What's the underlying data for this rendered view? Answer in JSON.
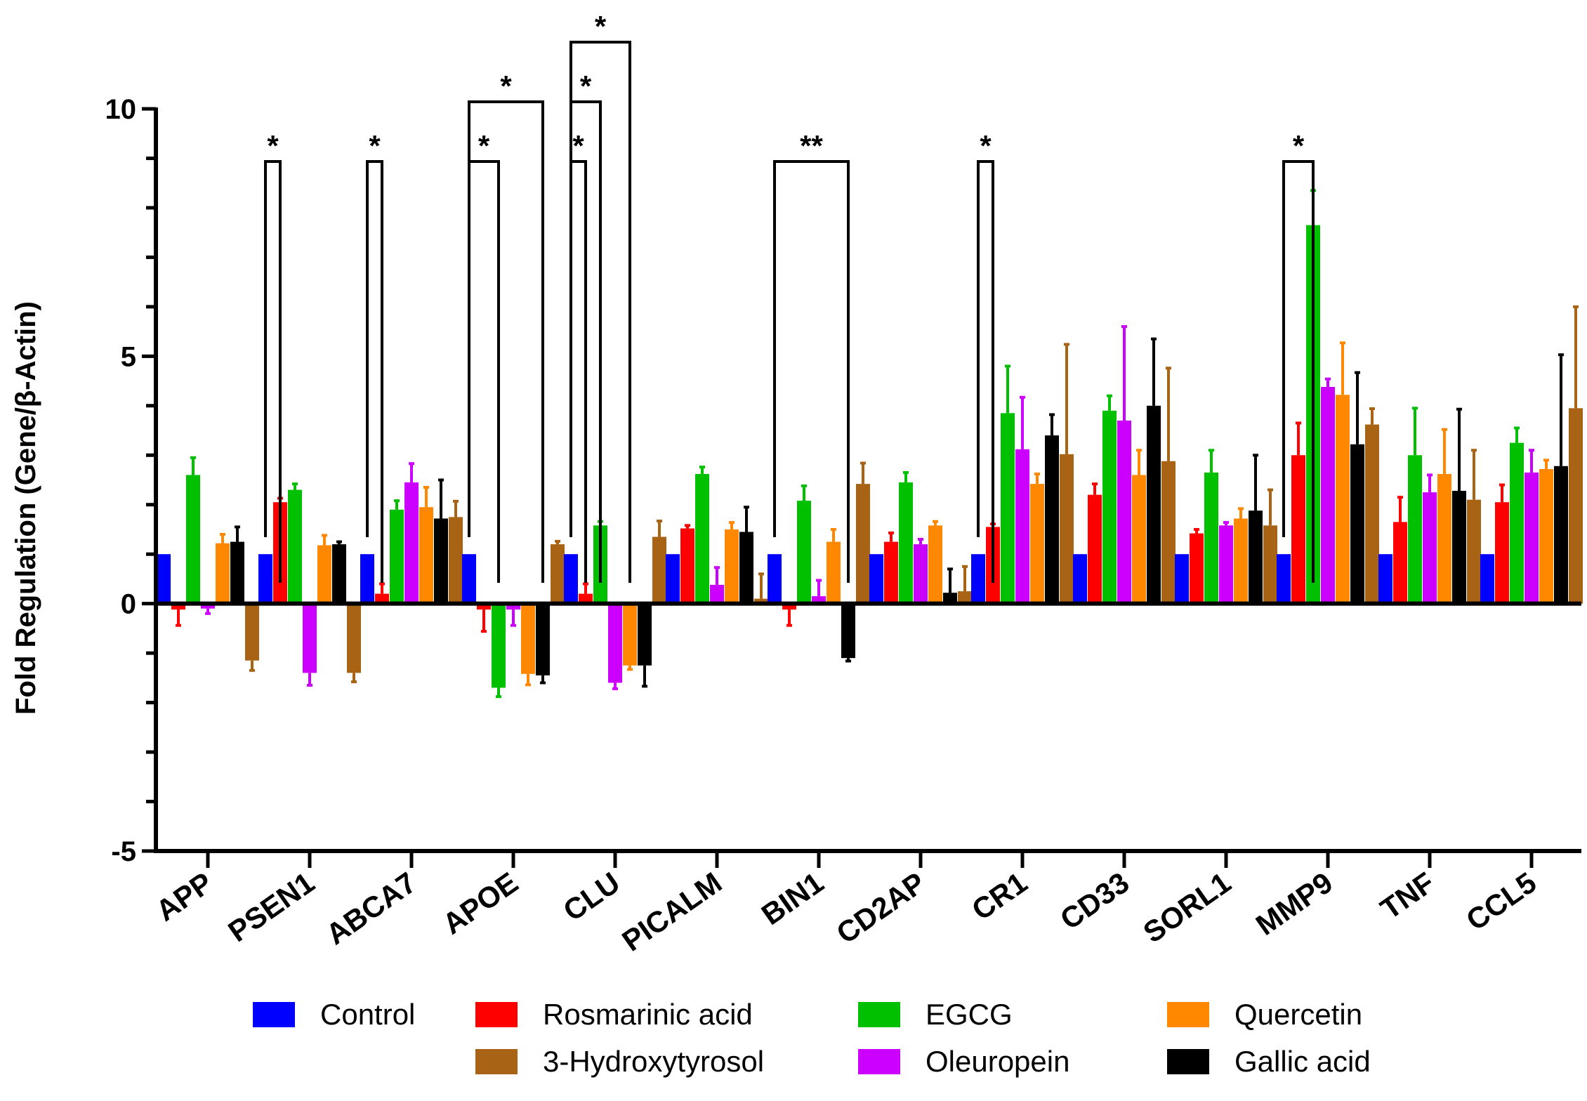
{
  "chart_data": {
    "type": "bar",
    "ylabel": "Fold Regulation (Gene/β-Actin)",
    "ylim": [
      -5,
      10
    ],
    "yticks": [
      -5,
      0,
      5,
      10
    ],
    "categories": [
      "APP",
      "PSEN1",
      "ABCA7",
      "APOE",
      "CLU",
      "PICALM",
      "BIN1",
      "CD2AP",
      "CR1",
      "CD33",
      "SORL1",
      "MMP9",
      "TNF",
      "CCL5"
    ],
    "series": [
      {
        "name": "Control",
        "color": "#0000ff",
        "values": [
          1,
          1,
          1,
          1,
          1,
          1,
          1,
          1,
          1,
          1,
          1,
          1,
          1,
          1
        ],
        "errors": [
          0,
          0,
          0,
          0,
          0,
          0,
          0,
          0,
          0,
          0,
          0,
          0,
          0,
          0
        ]
      },
      {
        "name": "Rosmarinic acid",
        "color": "#ff0000",
        "values": [
          -0.12,
          2.05,
          0.2,
          -0.12,
          0.2,
          1.52,
          -0.12,
          1.25,
          1.55,
          2.2,
          1.42,
          3.0,
          1.65,
          2.05
        ],
        "errors": [
          0.32,
          0.08,
          0.2,
          0.44,
          0.2,
          0.06,
          0.32,
          0.18,
          0.06,
          0.22,
          0.08,
          0.65,
          0.5,
          0.35
        ]
      },
      {
        "name": "EGCG",
        "color": "#00c000",
        "values": [
          2.6,
          2.3,
          1.9,
          -1.7,
          1.58,
          2.62,
          2.08,
          2.45,
          3.85,
          3.9,
          2.65,
          7.65,
          3.0,
          3.25
        ],
        "errors": [
          0.35,
          0.12,
          0.18,
          0.18,
          0.08,
          0.14,
          0.3,
          0.2,
          0.95,
          0.3,
          0.45,
          0.7,
          0.95,
          0.3
        ]
      },
      {
        "name": "Oleuropein",
        "color": "#cc00ff",
        "values": [
          -0.1,
          -1.4,
          2.45,
          -0.12,
          -1.6,
          0.38,
          0.15,
          1.2,
          3.12,
          3.7,
          1.58,
          4.38,
          2.25,
          2.65
        ],
        "errors": [
          0.1,
          0.25,
          0.38,
          0.32,
          0.12,
          0.35,
          0.32,
          0.1,
          1.05,
          1.9,
          0.06,
          0.16,
          0.35,
          0.45
        ]
      },
      {
        "name": "Quercetin",
        "color": "#ff8800",
        "values": [
          1.22,
          1.18,
          1.95,
          -1.42,
          -1.25,
          1.5,
          1.25,
          1.58,
          2.42,
          2.6,
          1.72,
          4.22,
          2.62,
          2.72
        ],
        "errors": [
          0.18,
          0.2,
          0.4,
          0.22,
          0.08,
          0.14,
          0.25,
          0.08,
          0.2,
          0.5,
          0.2,
          1.05,
          0.9,
          0.18
        ]
      },
      {
        "name": "Gallic acid",
        "color": "#000000",
        "values": [
          1.25,
          1.2,
          1.72,
          -1.45,
          -1.25,
          1.45,
          -1.1,
          0.22,
          3.4,
          4.0,
          1.88,
          3.22,
          2.28,
          2.78
        ],
        "errors": [
          0.3,
          0.05,
          0.78,
          0.15,
          0.42,
          0.5,
          0.06,
          0.48,
          0.42,
          1.35,
          1.12,
          1.45,
          1.65,
          2.25
        ]
      },
      {
        "name": "3-Hydroxytyrosol",
        "color": "#a86414",
        "values": [
          -1.15,
          -1.4,
          1.75,
          1.2,
          1.35,
          0.1,
          2.42,
          0.25,
          3.02,
          2.88,
          1.58,
          3.62,
          2.1,
          3.95
        ],
        "errors": [
          0.2,
          0.18,
          0.32,
          0.06,
          0.32,
          0.5,
          0.42,
          0.5,
          2.22,
          1.88,
          0.72,
          0.32,
          1.0,
          2.05
        ]
      }
    ],
    "significance": [
      {
        "category": "PSEN1",
        "from_series": "Control",
        "to_series": "Rosmarinic acid",
        "label": "*"
      },
      {
        "category": "ABCA7",
        "from_series": "Control",
        "to_series": "Rosmarinic acid",
        "label": "*"
      },
      {
        "category": "APOE",
        "from_series": "Control",
        "to_series": "EGCG",
        "label": "*"
      },
      {
        "category": "APOE",
        "from_series": "Control",
        "to_series": "Gallic acid",
        "label": "*"
      },
      {
        "category": "CLU",
        "from_series": "Control",
        "to_series": "Rosmarinic acid",
        "label": "*"
      },
      {
        "category": "CLU",
        "from_series": "Control",
        "to_series": "EGCG",
        "label": "*"
      },
      {
        "category": "CLU",
        "from_series": "Control",
        "to_series": "Quercetin",
        "label": "*"
      },
      {
        "category": "BIN1",
        "from_series": "Control",
        "to_series": "Gallic acid",
        "label": "**"
      },
      {
        "category": "CR1",
        "from_series": "Control",
        "to_series": "Rosmarinic acid",
        "label": "*"
      },
      {
        "category": "MMP9",
        "from_series": "Control",
        "to_series": "EGCG",
        "label": "*"
      }
    ],
    "legend": {
      "placement": "bottom",
      "order": [
        "Control",
        "Rosmarinic acid",
        "EGCG",
        "Quercetin",
        "3-Hydroxytyrosol",
        "Oleuropein",
        "Gallic acid"
      ]
    }
  }
}
